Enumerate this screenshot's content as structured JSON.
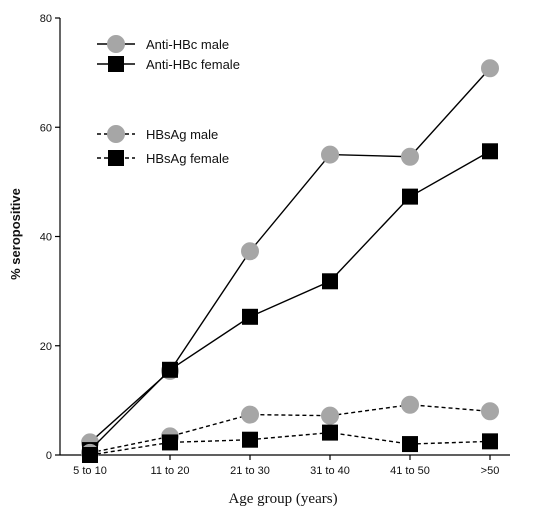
{
  "chart_data": {
    "type": "line",
    "xlabel": "Age group (years)",
    "ylabel": "% seropositive",
    "categories": [
      "5 to 10",
      "11 to 20",
      "21 to 30",
      "31 to 40",
      "41 to 50",
      ">50"
    ],
    "ylim": [
      0,
      80
    ],
    "yticks": [
      "0",
      "20",
      "40",
      "60",
      "80"
    ],
    "grid": false,
    "legend_position": "top-left",
    "series": [
      {
        "name": "Anti-HBc male",
        "line": "solid",
        "marker": "circle",
        "color": "#a6a6a6",
        "values": [
          2.3,
          15.4,
          37.3,
          55.0,
          54.6,
          70.8
        ]
      },
      {
        "name": "Anti-HBc female",
        "line": "solid",
        "marker": "square",
        "color": "#000000",
        "values": [
          0.9,
          15.6,
          25.3,
          31.8,
          47.3,
          55.6
        ]
      },
      {
        "name": "HBsAg male",
        "line": "dashed",
        "marker": "circle",
        "color": "#a6a6a6",
        "values": [
          0.4,
          3.4,
          7.4,
          7.2,
          9.2,
          8.0
        ]
      },
      {
        "name": "HBsAg female",
        "line": "dashed",
        "marker": "square",
        "color": "#000000",
        "values": [
          0.0,
          2.3,
          2.8,
          4.1,
          2.0,
          2.5
        ]
      }
    ]
  }
}
